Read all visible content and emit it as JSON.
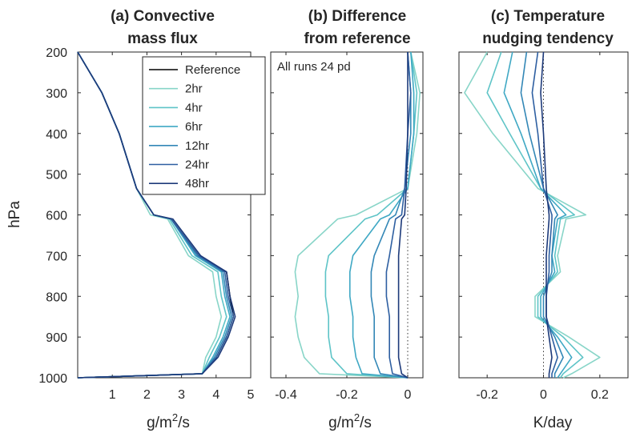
{
  "shared": {
    "ylabel": "hPa",
    "ylim": [
      200,
      1000
    ],
    "yticks": [
      "200",
      "300",
      "400",
      "500",
      "600",
      "700",
      "800",
      "900",
      "1000"
    ],
    "yreversed": true,
    "levels": [
      200,
      300,
      400,
      535,
      600,
      610,
      700,
      740,
      800,
      850,
      900,
      950,
      990,
      1000
    ]
  },
  "series_colors": [
    "#000000",
    "#88d5c8",
    "#5ec4c7",
    "#3fa8c4",
    "#3387b6",
    "#2e5fa1",
    "#1d3a7a"
  ],
  "chart_data": [
    {
      "type": "line",
      "title": "(a) Convective mass flux",
      "title_lines": [
        "(a) Convective",
        "mass flux"
      ],
      "xlabel": "g/m²/s",
      "xlabel_parts": [
        "g/m",
        "2",
        "/s"
      ],
      "xlim": [
        0,
        5
      ],
      "xticks": [
        "1",
        "2",
        "3",
        "4",
        "5"
      ],
      "legend": {
        "placement": "top-right",
        "entries": [
          "Reference",
          "2hr",
          "4hr",
          "6hr",
          "12hr",
          "24hr",
          "48hr"
        ]
      },
      "series": [
        {
          "name": "Reference",
          "x": [
            0,
            0.7,
            1.2,
            1.7,
            2.2,
            2.7,
            3.5,
            4.3,
            4.4,
            4.5,
            4.3,
            4.0,
            3.6,
            0
          ]
        },
        {
          "name": "2hr",
          "x": [
            0,
            0.7,
            1.2,
            1.7,
            2.1,
            2.6,
            3.2,
            3.9,
            4.0,
            4.15,
            4.0,
            3.7,
            3.6,
            0
          ]
        },
        {
          "name": "4hr",
          "x": [
            0,
            0.7,
            1.2,
            1.7,
            2.2,
            2.65,
            3.3,
            4.05,
            4.15,
            4.3,
            4.1,
            3.8,
            3.6,
            0
          ]
        },
        {
          "name": "6hr",
          "x": [
            0,
            0.7,
            1.2,
            1.7,
            2.2,
            2.7,
            3.4,
            4.15,
            4.25,
            4.4,
            4.2,
            3.9,
            3.6,
            0
          ]
        },
        {
          "name": "12hr",
          "x": [
            0,
            0.7,
            1.2,
            1.7,
            2.2,
            2.7,
            3.45,
            4.2,
            4.3,
            4.45,
            4.25,
            3.95,
            3.6,
            0
          ]
        },
        {
          "name": "24hr",
          "x": [
            0,
            0.7,
            1.2,
            1.7,
            2.2,
            2.7,
            3.5,
            4.25,
            4.35,
            4.5,
            4.3,
            4.0,
            3.6,
            0
          ]
        },
        {
          "name": "48hr",
          "x": [
            0,
            0.7,
            1.2,
            1.7,
            2.2,
            2.75,
            3.55,
            4.3,
            4.4,
            4.55,
            4.35,
            4.05,
            3.6,
            0
          ]
        }
      ]
    },
    {
      "type": "line",
      "title": "(b) Difference from reference",
      "title_lines": [
        "(b) Difference",
        "from reference"
      ],
      "xlabel": "g/m²/s",
      "xlabel_parts": [
        "g/m",
        "2",
        "/s"
      ],
      "xlim": [
        -0.45,
        0.05
      ],
      "xticks": [
        "-0.4",
        "-0.2",
        "0"
      ],
      "annotation": "All runs 24 pd",
      "zero_line": true,
      "series": [
        {
          "name": "2hr",
          "x": [
            0.01,
            0.04,
            0.03,
            0.0,
            -0.17,
            -0.23,
            -0.36,
            -0.37,
            -0.36,
            -0.37,
            -0.36,
            -0.34,
            -0.29,
            0.0
          ]
        },
        {
          "name": "4hr",
          "x": [
            0.01,
            0.03,
            0.02,
            0.0,
            -0.1,
            -0.14,
            -0.26,
            -0.27,
            -0.27,
            -0.26,
            -0.26,
            -0.25,
            -0.2,
            0.0
          ]
        },
        {
          "name": "6hr",
          "x": [
            0.01,
            0.02,
            0.02,
            0.0,
            -0.06,
            -0.09,
            -0.18,
            -0.19,
            -0.19,
            -0.18,
            -0.18,
            -0.17,
            -0.15,
            0.0
          ]
        },
        {
          "name": "12hr",
          "x": [
            0.0,
            0.01,
            0.01,
            -0.01,
            -0.04,
            -0.06,
            -0.11,
            -0.12,
            -0.12,
            -0.11,
            -0.11,
            -0.11,
            -0.09,
            0.0
          ]
        },
        {
          "name": "24hr",
          "x": [
            0.0,
            0.01,
            0.0,
            -0.01,
            -0.02,
            -0.04,
            -0.06,
            -0.07,
            -0.07,
            -0.06,
            -0.06,
            -0.06,
            -0.05,
            0.0
          ]
        },
        {
          "name": "48hr",
          "x": [
            0.0,
            0.0,
            0.0,
            -0.005,
            -0.01,
            -0.02,
            -0.03,
            -0.03,
            -0.03,
            -0.03,
            -0.03,
            -0.03,
            -0.02,
            0.0
          ]
        }
      ]
    },
    {
      "type": "line",
      "title": "(c) Temperature nudging tendency",
      "title_lines": [
        "(c) Temperature",
        "nudging tendency"
      ],
      "xlabel": "K/day",
      "xlim": [
        -0.3,
        0.3
      ],
      "xticks": [
        "-0.2",
        "0",
        "0.2"
      ],
      "zero_line": true,
      "series": [
        {
          "name": "2hr",
          "x": [
            -0.2,
            -0.28,
            -0.18,
            -0.02,
            0.15,
            0.08,
            0.05,
            0.06,
            -0.03,
            -0.03,
            0.09,
            0.2,
            0.1,
            0.07
          ]
        },
        {
          "name": "4hr",
          "x": [
            -0.15,
            -0.2,
            -0.12,
            -0.01,
            0.11,
            0.06,
            0.04,
            0.05,
            -0.02,
            -0.02,
            0.07,
            0.14,
            0.07,
            0.06
          ]
        },
        {
          "name": "6hr",
          "x": [
            -0.11,
            -0.14,
            -0.08,
            -0.01,
            0.08,
            0.05,
            0.03,
            0.04,
            -0.01,
            -0.01,
            0.05,
            0.1,
            0.06,
            0.05
          ]
        },
        {
          "name": "12hr",
          "x": [
            -0.06,
            -0.08,
            -0.05,
            0.0,
            0.05,
            0.04,
            0.03,
            0.03,
            0.0,
            0.0,
            0.04,
            0.07,
            0.04,
            0.04
          ]
        },
        {
          "name": "24hr",
          "x": [
            -0.02,
            -0.04,
            -0.02,
            0.0,
            0.03,
            0.03,
            0.02,
            0.02,
            0.01,
            0.01,
            0.03,
            0.05,
            0.03,
            0.03
          ]
        },
        {
          "name": "48hr",
          "x": [
            0.0,
            -0.01,
            0.0,
            0.01,
            0.02,
            0.02,
            0.01,
            0.01,
            0.01,
            0.01,
            0.02,
            0.03,
            0.02,
            0.02
          ]
        }
      ]
    }
  ]
}
